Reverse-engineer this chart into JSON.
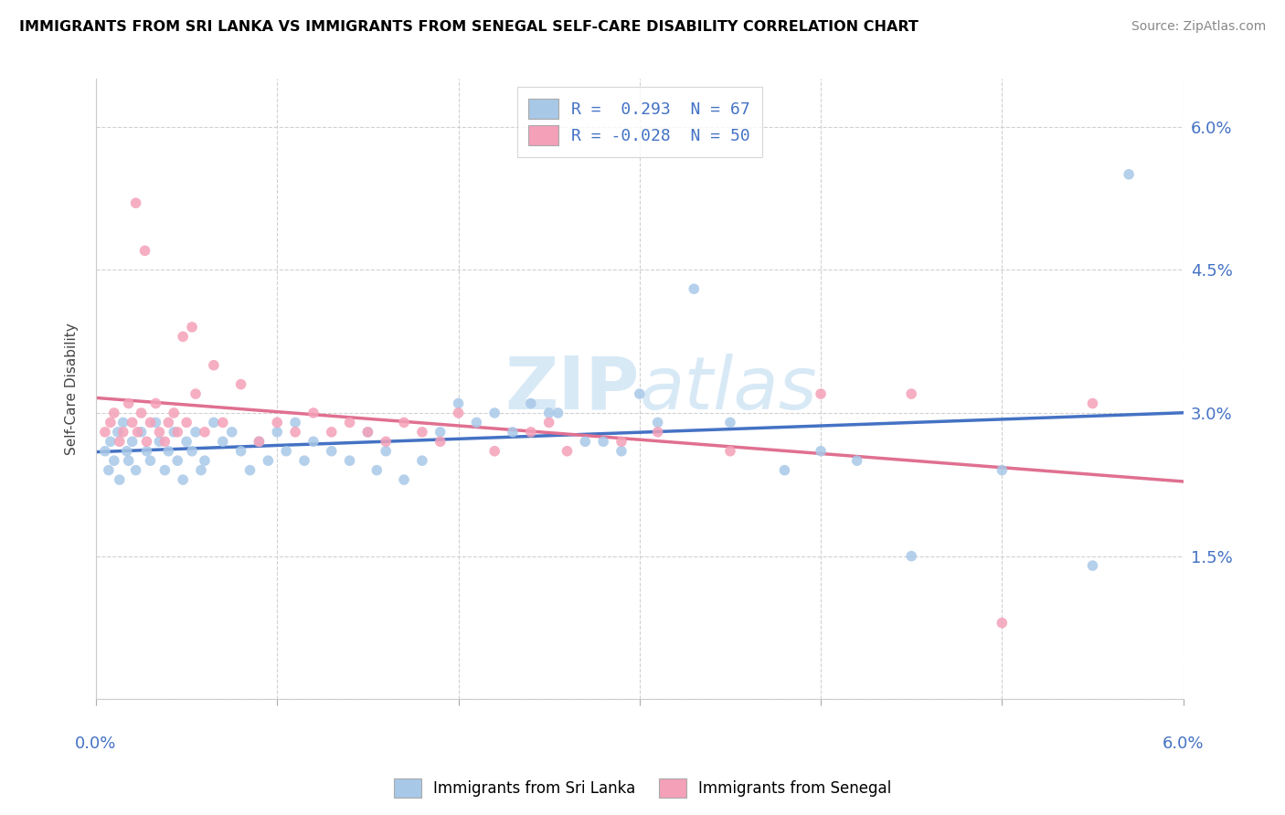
{
  "title": "IMMIGRANTS FROM SRI LANKA VS IMMIGRANTS FROM SENEGAL SELF-CARE DISABILITY CORRELATION CHART",
  "source": "Source: ZipAtlas.com",
  "ylabel": "Self-Care Disability",
  "ytick_values": [
    0.0,
    1.5,
    3.0,
    4.5,
    6.0
  ],
  "ytick_labels": [
    "",
    "1.5%",
    "3.0%",
    "4.5%",
    "6.0%"
  ],
  "xrange": [
    0.0,
    6.0
  ],
  "yrange": [
    0.0,
    6.5
  ],
  "color_sri_lanka": "#a8c8e8",
  "color_senegal": "#f4a0b8",
  "line_color_sri_lanka": "#4472c4",
  "line_color_senegal": "#e07090",
  "watermark": "ZIPatlas",
  "legend_label_1": "R =  0.293  N = 67",
  "legend_label_2": "R = -0.028  N = 50",
  "bottom_legend_1": "Immigrants from Sri Lanka",
  "bottom_legend_2": "Immigrants from Senegal",
  "sri_lanka_x": [
    0.05,
    0.07,
    0.08,
    0.1,
    0.12,
    0.13,
    0.15,
    0.17,
    0.18,
    0.2,
    0.22,
    0.25,
    0.28,
    0.3,
    0.33,
    0.35,
    0.38,
    0.4,
    0.43,
    0.45,
    0.48,
    0.5,
    0.53,
    0.55,
    0.58,
    0.6,
    0.65,
    0.7,
    0.75,
    0.8,
    0.85,
    0.9,
    0.95,
    1.0,
    1.05,
    1.1,
    1.15,
    1.2,
    1.3,
    1.4,
    1.5,
    1.55,
    1.6,
    1.7,
    1.8,
    1.9,
    2.0,
    2.1,
    2.2,
    2.3,
    2.4,
    2.5,
    2.8,
    3.0,
    3.1,
    3.5,
    3.8,
    4.0,
    4.2,
    4.5,
    5.0,
    5.5,
    5.7,
    2.55,
    2.7,
    2.9,
    3.3
  ],
  "sri_lanka_y": [
    2.6,
    2.4,
    2.7,
    2.5,
    2.8,
    2.3,
    2.9,
    2.6,
    2.5,
    2.7,
    2.4,
    2.8,
    2.6,
    2.5,
    2.9,
    2.7,
    2.4,
    2.6,
    2.8,
    2.5,
    2.3,
    2.7,
    2.6,
    2.8,
    2.4,
    2.5,
    2.9,
    2.7,
    2.8,
    2.6,
    2.4,
    2.7,
    2.5,
    2.8,
    2.6,
    2.9,
    2.5,
    2.7,
    2.6,
    2.5,
    2.8,
    2.4,
    2.6,
    2.3,
    2.5,
    2.8,
    3.1,
    2.9,
    3.0,
    2.8,
    3.1,
    3.0,
    2.7,
    3.2,
    2.9,
    2.9,
    2.4,
    2.6,
    2.5,
    1.5,
    2.4,
    1.4,
    5.5,
    3.0,
    2.7,
    2.6,
    4.3
  ],
  "senegal_x": [
    0.05,
    0.08,
    0.1,
    0.13,
    0.15,
    0.18,
    0.2,
    0.23,
    0.25,
    0.28,
    0.3,
    0.33,
    0.35,
    0.38,
    0.4,
    0.43,
    0.45,
    0.5,
    0.55,
    0.6,
    0.65,
    0.7,
    0.8,
    0.9,
    1.0,
    1.1,
    1.2,
    1.3,
    1.4,
    1.5,
    1.6,
    1.7,
    1.8,
    1.9,
    2.0,
    2.2,
    2.4,
    2.5,
    2.6,
    2.9,
    3.1,
    3.5,
    4.0,
    4.5,
    5.0,
    5.5,
    0.22,
    0.27,
    0.48,
    0.53
  ],
  "senegal_y": [
    2.8,
    2.9,
    3.0,
    2.7,
    2.8,
    3.1,
    2.9,
    2.8,
    3.0,
    2.7,
    2.9,
    3.1,
    2.8,
    2.7,
    2.9,
    3.0,
    2.8,
    2.9,
    3.2,
    2.8,
    3.5,
    2.9,
    3.3,
    2.7,
    2.9,
    2.8,
    3.0,
    2.8,
    2.9,
    2.8,
    2.7,
    2.9,
    2.8,
    2.7,
    3.0,
    2.6,
    2.8,
    2.9,
    2.6,
    2.7,
    2.8,
    2.6,
    3.2,
    3.2,
    0.8,
    3.1,
    5.2,
    4.7,
    3.8,
    3.9
  ]
}
